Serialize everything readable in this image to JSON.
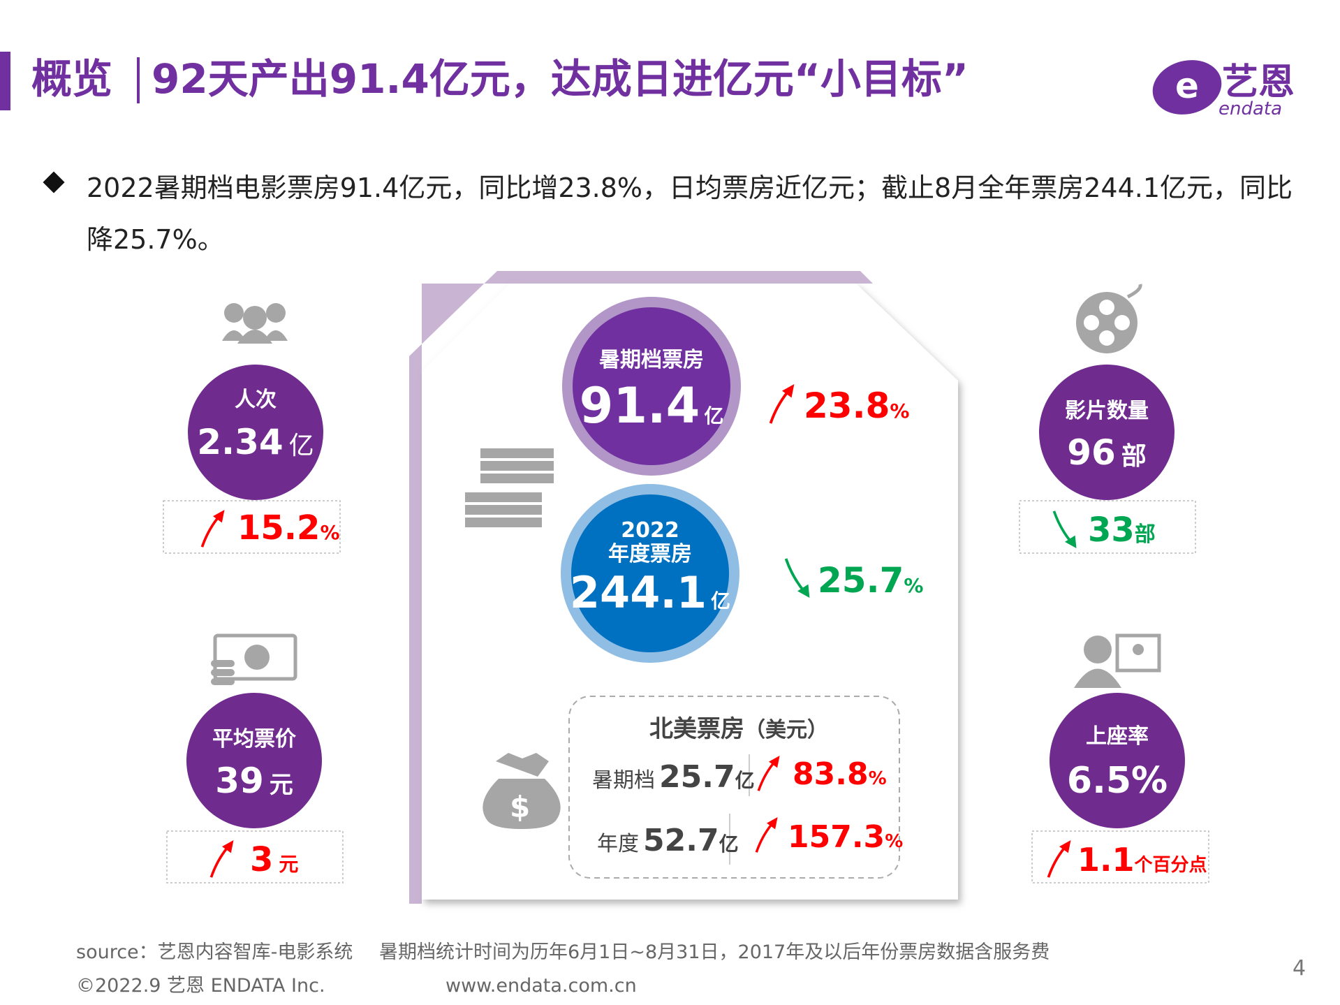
{
  "header": {
    "title": "概览",
    "subtitle": "92天产出91.4亿元，达成日进亿元“小目标”",
    "logo_cn": "艺恩",
    "logo_en": "endata"
  },
  "bullet": "2022暑期档电影票房91.4亿元，同比增23.8%，日均票房近亿元；截止8月全年票房244.1亿元，同比降25.7%。",
  "admissions": {
    "label": "人次",
    "value": "2.34",
    "unit": "亿",
    "change": "15.2",
    "change_unit": "%"
  },
  "avg_price": {
    "label": "平均票价",
    "value": "39",
    "unit": "元",
    "change": "3",
    "change_unit": "元"
  },
  "summer_box_office": {
    "label": "暑期档票房",
    "value": "91.4",
    "unit": "亿",
    "change": "23.8",
    "change_unit": "%"
  },
  "annual_box_office": {
    "year": "2022",
    "label": "年度票房",
    "value": "244.1",
    "unit": "亿",
    "change": "25.7",
    "change_unit": "%"
  },
  "north_america": {
    "title": "北美票房",
    "note": "（美元）",
    "rows": [
      {
        "label": "暑期档",
        "value": "25.7",
        "unit": "亿",
        "change": "83.8",
        "change_unit": "%"
      },
      {
        "label": "年度",
        "value": "52.7",
        "unit": "亿",
        "change": "157.3",
        "change_unit": "%"
      }
    ]
  },
  "films": {
    "label": "影片数量",
    "value": "96",
    "unit": "部",
    "change": "33",
    "change_unit": "部"
  },
  "occupancy": {
    "label": "上座率",
    "value": "6.5%",
    "change": "1.1",
    "change_unit": "个百分点"
  },
  "footer": {
    "source": "source：艺恩内容智库-电影系统",
    "note": "暑期档统计时间为历年6月1日~8月31日，2017年及以后年份票房数据含服务费",
    "copyright": "©2022.9 艺恩 ENDATA Inc.",
    "url": "www.endata.com.cn",
    "page": "4"
  }
}
